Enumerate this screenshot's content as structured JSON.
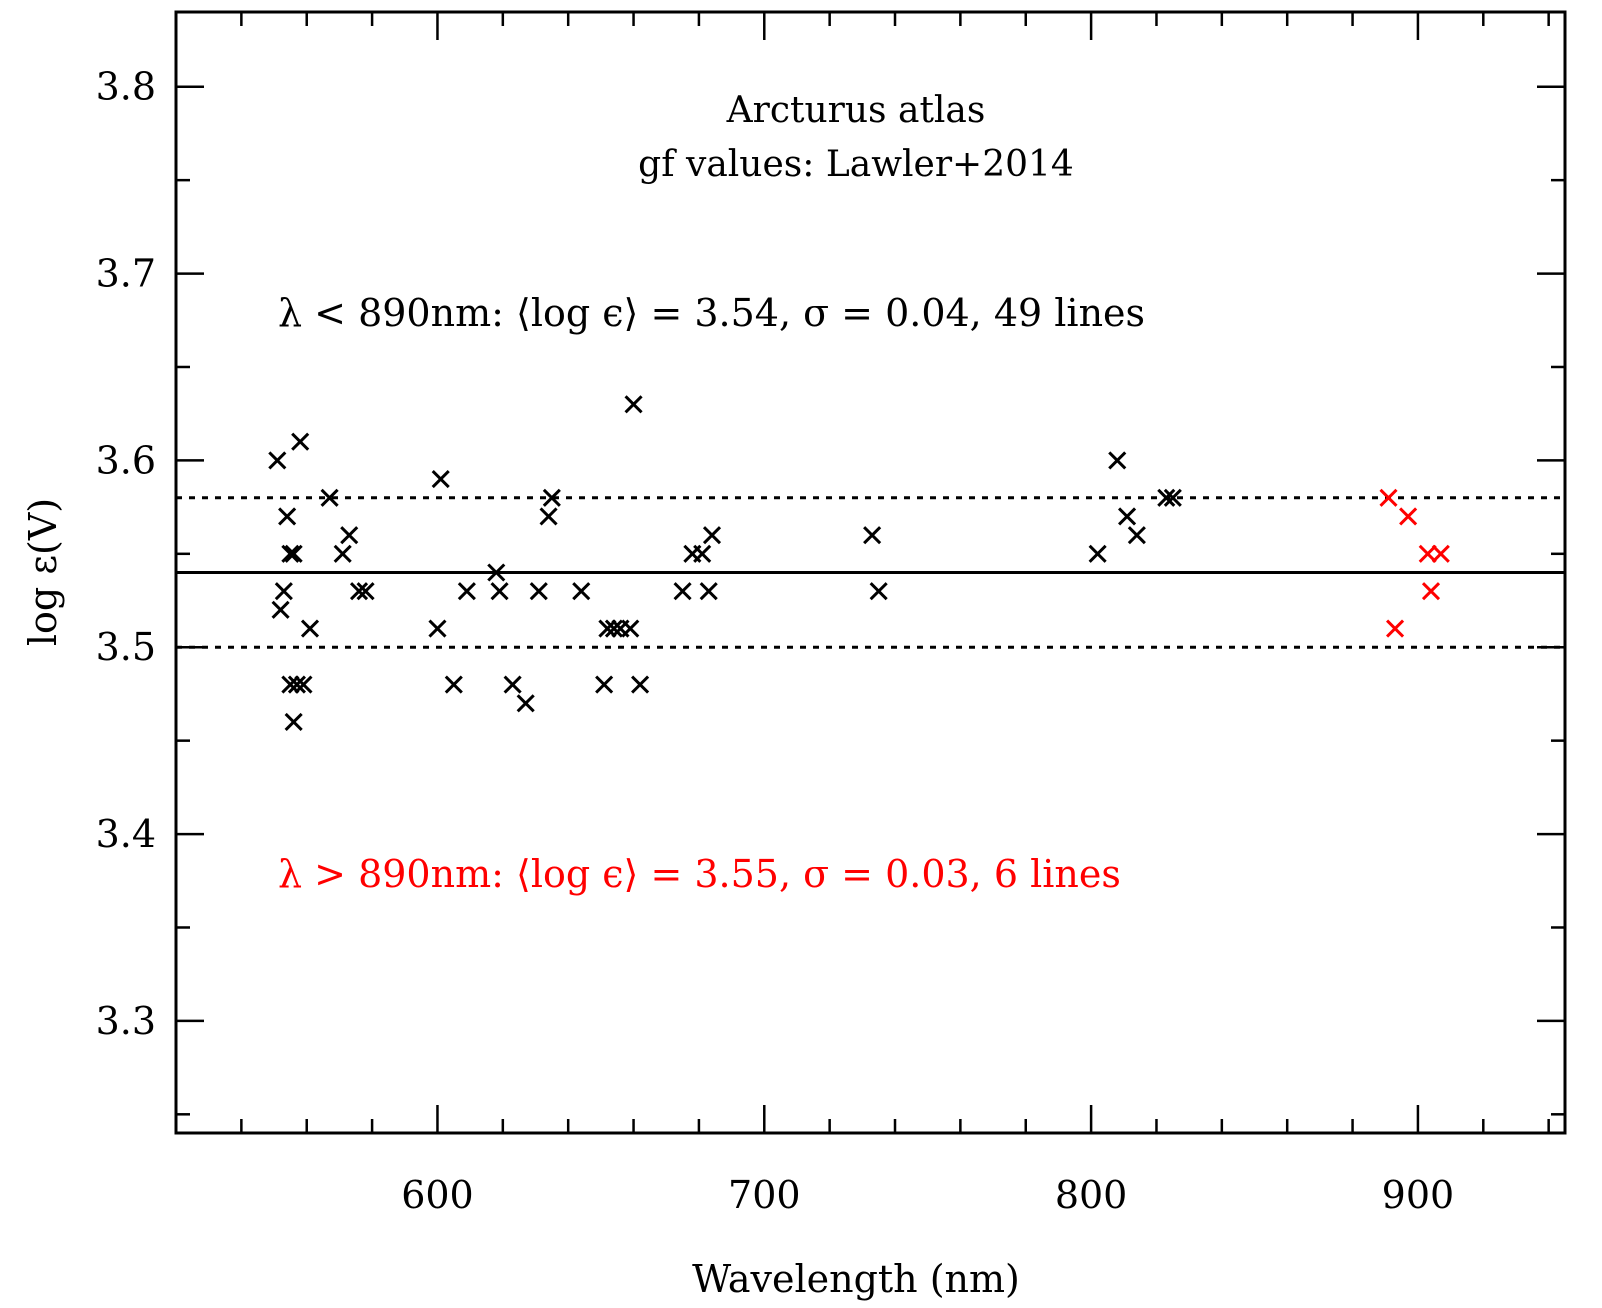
{
  "chart_data": {
    "type": "scatter",
    "title_lines": [
      "Arcturus atlas",
      "gf values:  Lawler+2014"
    ],
    "xlabel": "Wavelength (nm)",
    "ylabel": "log ε(V)",
    "xlim": [
      520,
      945
    ],
    "ylim": [
      3.24,
      3.84
    ],
    "x_ticks": [
      {
        "value": 600,
        "label": "600"
      },
      {
        "value": 700,
        "label": "700"
      },
      {
        "value": 800,
        "label": "800"
      },
      {
        "value": 900,
        "label": "900"
      }
    ],
    "y_ticks": [
      {
        "value": 3.3,
        "label": "3.3"
      },
      {
        "value": 3.4,
        "label": "3.4"
      },
      {
        "value": 3.5,
        "label": "3.5"
      },
      {
        "value": 3.6,
        "label": "3.6"
      },
      {
        "value": 3.7,
        "label": "3.7"
      },
      {
        "value": 3.8,
        "label": "3.8"
      }
    ],
    "reference_lines": {
      "mean": 3.54,
      "upper": 3.58,
      "lower": 3.5
    },
    "annotations": [
      {
        "text": "λ < 890nm:  ⟨log ϵ⟩ = 3.54, σ = 0.04, 49 lines",
        "color": "#000000"
      },
      {
        "text": "λ > 890nm:  ⟨log ϵ⟩ = 3.55, σ = 0.03, 6 lines",
        "color": "#ff0000"
      }
    ],
    "series": [
      {
        "color": "#000000",
        "marker": "x",
        "points": [
          [
            551,
            3.6
          ],
          [
            558,
            3.61
          ],
          [
            554,
            3.57
          ],
          [
            555,
            3.55
          ],
          [
            556,
            3.55
          ],
          [
            553,
            3.53
          ],
          [
            552,
            3.52
          ],
          [
            561,
            3.51
          ],
          [
            555,
            3.48
          ],
          [
            557,
            3.48
          ],
          [
            559,
            3.48
          ],
          [
            556,
            3.46
          ],
          [
            567,
            3.58
          ],
          [
            573,
            3.56
          ],
          [
            571,
            3.55
          ],
          [
            576,
            3.53
          ],
          [
            578,
            3.53
          ],
          [
            601,
            3.59
          ],
          [
            600,
            3.51
          ],
          [
            605,
            3.48
          ],
          [
            609,
            3.53
          ],
          [
            618,
            3.54
          ],
          [
            619,
            3.53
          ],
          [
            623,
            3.48
          ],
          [
            627,
            3.47
          ],
          [
            631,
            3.53
          ],
          [
            635,
            3.58
          ],
          [
            634,
            3.57
          ],
          [
            644,
            3.53
          ],
          [
            652,
            3.51
          ],
          [
            654,
            3.51
          ],
          [
            656,
            3.51
          ],
          [
            659,
            3.51
          ],
          [
            651,
            3.48
          ],
          [
            662,
            3.48
          ],
          [
            660,
            3.63
          ],
          [
            675,
            3.53
          ],
          [
            678,
            3.55
          ],
          [
            681,
            3.55
          ],
          [
            683,
            3.53
          ],
          [
            684,
            3.56
          ],
          [
            733,
            3.56
          ],
          [
            735,
            3.53
          ],
          [
            802,
            3.55
          ],
          [
            808,
            3.6
          ],
          [
            811,
            3.57
          ],
          [
            814,
            3.56
          ],
          [
            823,
            3.58
          ],
          [
            825,
            3.58
          ]
        ]
      },
      {
        "color": "#ff0000",
        "marker": "x",
        "points": [
          [
            891,
            3.58
          ],
          [
            897,
            3.57
          ],
          [
            903,
            3.55
          ],
          [
            907,
            3.55
          ],
          [
            904,
            3.53
          ],
          [
            893,
            3.51
          ]
        ]
      }
    ]
  }
}
